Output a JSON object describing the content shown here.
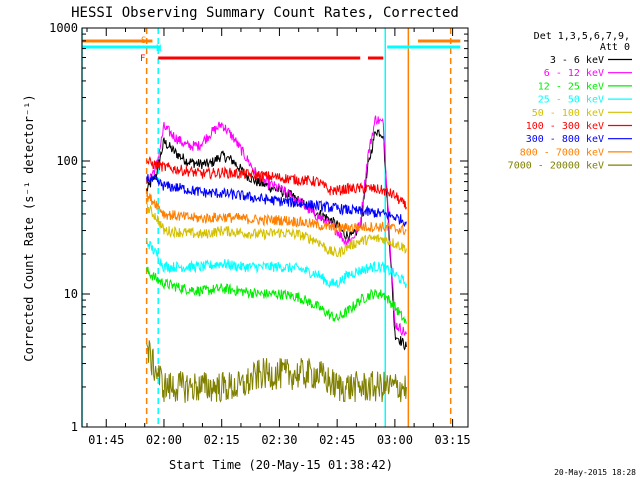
{
  "chart_data": {
    "type": "line",
    "title": "HESSI Observing Summary Count Rates, Corrected",
    "xlabel": "Start Time (20-May-15 01:38:42)",
    "ylabel": "Corrected Count Rate (s⁻¹ detector⁻¹)",
    "yscale": "log",
    "ylim": [
      1,
      1000
    ],
    "xlim": [
      "01:38:42",
      "03:19:00"
    ],
    "x_ticks": [
      "01:45",
      "02:00",
      "02:15",
      "02:30",
      "02:45",
      "03:00",
      "03:15"
    ],
    "y_ticks": [
      "1",
      "10",
      "100",
      "1000"
    ],
    "grid": false,
    "legend": {
      "position": "right",
      "header_lines": [
        "Det 1,3,5,6,7,9,",
        "Att 0"
      ],
      "entries": [
        {
          "label": "3 - 6 keV",
          "color": "#000000"
        },
        {
          "label": "6 - 12 keV",
          "color": "#ff00ff"
        },
        {
          "label": "12 - 25 keV",
          "color": "#00ee00"
        },
        {
          "label": "25 - 50 keV",
          "color": "#00ffff"
        },
        {
          "label": "50 - 100 keV",
          "color": "#d4c000"
        },
        {
          "label": "100 - 300 keV",
          "color": "#ff0000"
        },
        {
          "label": "300 - 800 keV",
          "color": "#0000ff"
        },
        {
          "label": "800 - 7000 keV",
          "color": "#ff8000"
        },
        {
          "label": "7000 - 20000 keV",
          "color": "#808000"
        }
      ]
    },
    "flag_labels": [
      {
        "label": "S",
        "color": "#ff8000"
      },
      {
        "label": "N",
        "color": "#00ffff"
      },
      {
        "label": "F",
        "color": "#ff0000"
      }
    ],
    "flag_bars": [
      {
        "flag": "S",
        "color": "#ff8000",
        "x": [
          "01:38:42",
          "01:57:00"
        ]
      },
      {
        "flag": "S",
        "color": "#ff8000",
        "x": [
          "03:06:00",
          "03:17:00"
        ]
      },
      {
        "flag": "N",
        "color": "#00ffff",
        "x": [
          "01:38:42",
          "01:59:00"
        ]
      },
      {
        "flag": "N",
        "color": "#00ffff",
        "x": [
          "02:58:00",
          "03:17:00"
        ]
      },
      {
        "flag": "F",
        "color": "#ff0000",
        "x": [
          "01:58:30",
          "02:51:00"
        ]
      },
      {
        "flag": "F",
        "color": "#ff0000",
        "x": [
          "02:53:00",
          "02:57:00"
        ]
      }
    ],
    "vlines": [
      {
        "x": "01:38:42",
        "color": "#00ffff",
        "style": "solid"
      },
      {
        "x": "01:55:30",
        "color": "#ff8000",
        "style": "dashed"
      },
      {
        "x": "01:58:30",
        "color": "#00ffff",
        "style": "dashed"
      },
      {
        "x": "02:57:30",
        "color": "#00ffff",
        "style": "solid"
      },
      {
        "x": "03:03:30",
        "color": "#ff8000",
        "style": "solid"
      },
      {
        "x": "03:14:30",
        "color": "#ff8000",
        "style": "dashed"
      }
    ],
    "series": [
      {
        "name": "3 - 6 keV",
        "color": "#000000",
        "x": [
          "01:55:30",
          "01:58:00",
          "02:00:00",
          "02:03:00",
          "02:06:00",
          "02:09:00",
          "02:12:00",
          "02:15:00",
          "02:18:00",
          "02:21:00",
          "02:24:00",
          "02:27:00",
          "02:30:00",
          "02:33:00",
          "02:36:00",
          "02:39:00",
          "02:42:00",
          "02:45:00",
          "02:47:00",
          "02:49:00",
          "02:51:00",
          "02:53:00",
          "02:55:00",
          "02:57:00",
          "03:00:00",
          "03:03:00"
        ],
        "y": [
          60,
          80,
          140,
          115,
          100,
          95,
          95,
          110,
          100,
          80,
          70,
          65,
          60,
          55,
          48,
          42,
          38,
          33,
          28,
          27,
          32,
          90,
          170,
          160,
          5,
          4
        ]
      },
      {
        "name": "6 - 12 keV",
        "color": "#ff00ff",
        "x": [
          "01:55:30",
          "01:58:00",
          "02:00:00",
          "02:03:00",
          "02:06:00",
          "02:09:00",
          "02:12:00",
          "02:15:00",
          "02:18:00",
          "02:21:00",
          "02:24:00",
          "02:27:00",
          "02:30:00",
          "02:33:00",
          "02:36:00",
          "02:39:00",
          "02:42:00",
          "02:45:00",
          "02:47:00",
          "02:49:00",
          "02:51:00",
          "02:53:00",
          "02:55:00",
          "02:57:00",
          "03:00:00",
          "03:03:00"
        ],
        "y": [
          70,
          90,
          180,
          150,
          130,
          130,
          160,
          190,
          150,
          110,
          80,
          68,
          62,
          55,
          47,
          40,
          35,
          30,
          25,
          26,
          34,
          110,
          210,
          190,
          6,
          5
        ]
      },
      {
        "name": "12 - 25 keV",
        "color": "#00ee00",
        "x": [
          "01:55:30",
          "01:58:00",
          "02:00:00",
          "02:05:00",
          "02:10:00",
          "02:15:00",
          "02:20:00",
          "02:25:00",
          "02:30:00",
          "02:35:00",
          "02:40:00",
          "02:43:00",
          "02:45:00",
          "02:48:00",
          "02:51:00",
          "02:54:00",
          "02:57:00",
          "03:00:00",
          "03:03:00"
        ],
        "y": [
          15,
          13,
          12,
          11,
          10.5,
          11,
          10.5,
          10,
          10,
          9.5,
          8,
          7,
          6.5,
          7.5,
          9,
          10,
          10,
          8,
          6
        ]
      },
      {
        "name": "25 - 50 keV",
        "color": "#00ffff",
        "x": [
          "01:55:30",
          "01:58:00",
          "02:00:00",
          "02:05:00",
          "02:10:00",
          "02:15:00",
          "02:20:00",
          "02:25:00",
          "02:30:00",
          "02:35:00",
          "02:40:00",
          "02:43:00",
          "02:45:00",
          "02:48:00",
          "02:51:00",
          "02:54:00",
          "02:57:00",
          "03:00:00",
          "03:03:00"
        ],
        "y": [
          25,
          20,
          16,
          16,
          16,
          17,
          16,
          16,
          16,
          15.5,
          14,
          12,
          12,
          14,
          15,
          16,
          16,
          14,
          12
        ]
      },
      {
        "name": "50 - 100 keV",
        "color": "#d4c000",
        "x": [
          "01:55:30",
          "01:58:00",
          "02:00:00",
          "02:05:00",
          "02:10:00",
          "02:15:00",
          "02:20:00",
          "02:25:00",
          "02:30:00",
          "02:35:00",
          "02:40:00",
          "02:43:00",
          "02:45:00",
          "02:48:00",
          "02:51:00",
          "02:54:00",
          "02:57:00",
          "03:00:00",
          "03:03:00"
        ],
        "y": [
          45,
          38,
          30,
          29,
          28,
          30,
          29,
          28,
          29,
          28,
          25,
          21,
          20,
          23,
          25,
          26,
          26,
          24,
          22
        ]
      },
      {
        "name": "100 - 300 keV",
        "color": "#ff0000",
        "x": [
          "01:55:30",
          "01:57:00",
          "02:00:00",
          "02:05:00",
          "02:10:00",
          "02:15:00",
          "02:20:00",
          "02:25:00",
          "02:30:00",
          "02:35:00",
          "02:40:00",
          "02:43:00",
          "02:45:00",
          "02:48:00",
          "02:51:00",
          "02:54:00",
          "02:57:00",
          "03:00:00",
          "03:03:00"
        ],
        "y": [
          100,
          95,
          90,
          85,
          80,
          82,
          80,
          78,
          75,
          72,
          70,
          60,
          60,
          62,
          62,
          62,
          60,
          55,
          45
        ]
      },
      {
        "name": "300 - 800 keV",
        "color": "#0000ff",
        "x": [
          "01:55:30",
          "01:58:00",
          "02:00:00",
          "02:05:00",
          "02:10:00",
          "02:15:00",
          "02:20:00",
          "02:25:00",
          "02:30:00",
          "02:35:00",
          "02:40:00",
          "02:45:00",
          "02:50:00",
          "02:54:00",
          "02:57:00",
          "03:00:00",
          "03:03:00"
        ],
        "y": [
          75,
          70,
          65,
          62,
          58,
          57,
          55,
          52,
          50,
          48,
          46,
          44,
          42,
          41,
          40,
          38,
          35
        ]
      },
      {
        "name": "800 - 7000 keV",
        "color": "#ff8000",
        "x": [
          "01:55:30",
          "01:58:00",
          "02:00:00",
          "02:05:00",
          "02:10:00",
          "02:15:00",
          "02:20:00",
          "02:25:00",
          "02:30:00",
          "02:35:00",
          "02:40:00",
          "02:45:00",
          "02:50:00",
          "02:54:00",
          "02:57:00",
          "03:00:00",
          "03:03:00"
        ],
        "y": [
          55,
          48,
          40,
          38,
          37,
          38,
          37,
          36,
          36,
          35,
          33,
          31,
          32,
          32,
          32,
          31,
          30
        ]
      },
      {
        "name": "7000 - 20000 keV",
        "color": "#808000",
        "x": [
          "01:55:30",
          "01:57:00",
          "01:58:30",
          "02:00:00",
          "02:05:00",
          "02:10:00",
          "02:15:00",
          "02:20:00",
          "02:25:00",
          "02:30:00",
          "02:35:00",
          "02:40:00",
          "02:45:00",
          "02:50:00",
          "02:55:00",
          "03:00:00",
          "03:03:00"
        ],
        "y": [
          4,
          3,
          2.5,
          2,
          2,
          2,
          2,
          2,
          2.5,
          2.5,
          2.5,
          2.5,
          2,
          2,
          2,
          2,
          2
        ]
      }
    ]
  },
  "footer_date": "20-May-2015 18:28"
}
